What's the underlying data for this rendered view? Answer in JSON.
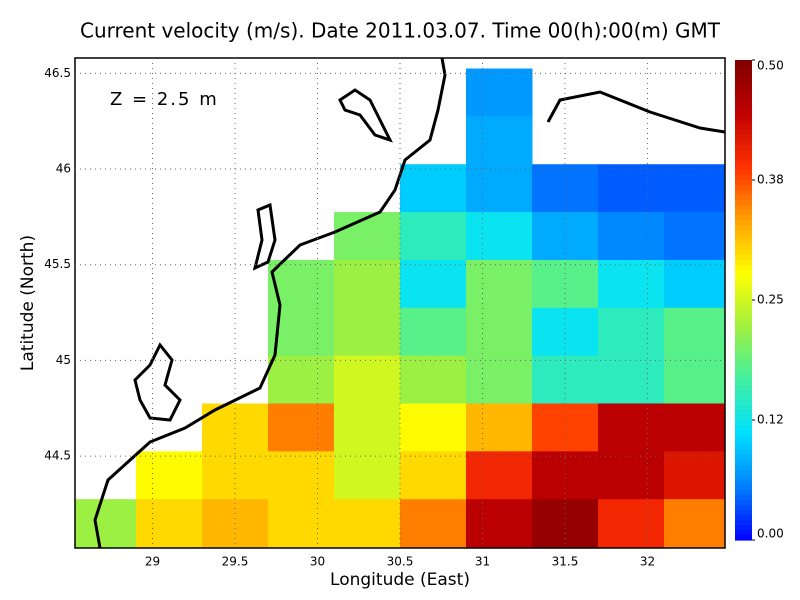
{
  "chart_data": {
    "type": "heatmap",
    "title": "Current velocity (m/s). Date 2011.03.07. Time 00(h):00(m) GMT",
    "annotation": "Z = 2.5 m",
    "xlabel": "Longitude (East)",
    "ylabel": "Latitude (North)",
    "xlim": [
      28.53,
      32.47
    ],
    "ylim": [
      44.02,
      46.58
    ],
    "xticks": [
      29,
      29.5,
      30,
      30.5,
      31,
      31.5,
      32
    ],
    "yticks": [
      44.5,
      45,
      45.5,
      46,
      46.5
    ],
    "clim": [
      0,
      0.5
    ],
    "cticks": [
      {
        "value": 0,
        "label": "0.00"
      },
      {
        "value": 0.125,
        "label": "0.12"
      },
      {
        "value": 0.25,
        "label": "0.25"
      },
      {
        "value": 0.375,
        "label": "0.38"
      },
      {
        "value": 0.5,
        "label": "0.50"
      }
    ],
    "colormap": [
      "#0000ff",
      "#0080ff",
      "#00e0ff",
      "#40f0a0",
      "#a0f040",
      "#ffff00",
      "#ffa000",
      "#ff3000",
      "#c00000",
      "#800000"
    ],
    "lon": [
      28.7,
      29.1,
      29.5,
      29.9,
      30.3,
      30.7,
      31.1,
      31.5,
      31.9,
      32.3
    ],
    "lat": [
      46.4,
      46.15,
      45.9,
      45.65,
      45.4,
      45.15,
      44.9,
      44.65,
      44.4,
      44.15
    ],
    "speed": [
      [
        null,
        null,
        null,
        null,
        null,
        null,
        0.07,
        null,
        null,
        null
      ],
      [
        null,
        null,
        null,
        null,
        null,
        null,
        0.08,
        null,
        null,
        null
      ],
      [
        null,
        null,
        null,
        null,
        null,
        0.1,
        0.08,
        0.05,
        0.04,
        0.04
      ],
      [
        null,
        null,
        null,
        null,
        0.2,
        0.15,
        0.12,
        0.08,
        0.06,
        0.05
      ],
      [
        null,
        null,
        null,
        0.2,
        0.22,
        0.12,
        0.2,
        0.18,
        0.12,
        0.1
      ],
      [
        null,
        null,
        null,
        0.2,
        0.22,
        0.18,
        0.2,
        0.12,
        0.15,
        0.18
      ],
      [
        null,
        null,
        null,
        0.22,
        0.25,
        0.22,
        0.2,
        0.15,
        0.15,
        0.18
      ],
      [
        null,
        null,
        0.3,
        0.35,
        0.25,
        0.28,
        0.32,
        0.38,
        0.45,
        0.45
      ],
      [
        null,
        0.28,
        0.3,
        0.3,
        0.25,
        0.3,
        0.4,
        0.45,
        0.45,
        0.42
      ],
      [
        0.22,
        0.3,
        0.32,
        0.3,
        0.3,
        0.35,
        0.45,
        0.48,
        0.4,
        0.35
      ]
    ]
  }
}
